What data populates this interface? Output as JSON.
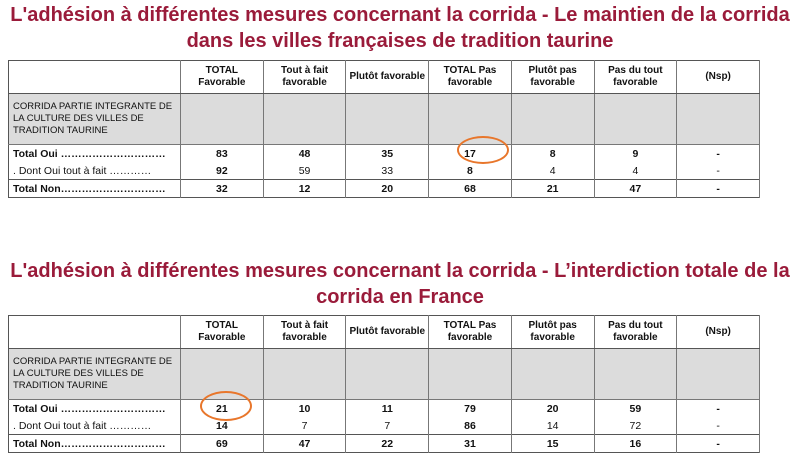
{
  "table1": {
    "title_line1": "L'adhésion à différentes mesures concernant la corrida - Le maintien de la corrida",
    "title_line2": "dans les villes françaises de tradition taurine",
    "headers": [
      "",
      "TOTAL Favorable",
      "Tout à fait favorable",
      "Plutôt favorable",
      "TOTAL Pas favorable",
      "Plutôt pas favorable",
      "Pas du tout favorable",
      "(Nsp)"
    ],
    "category": "CORRIDA PARTIE INTEGRANTE DE LA CULTURE DES VILLES DE TRADITION TAURINE",
    "rows": [
      {
        "label": "Total Oui …………………………",
        "values": [
          "83",
          "48",
          "35",
          "17",
          "8",
          "9",
          "-"
        ],
        "bold": true
      },
      {
        "label": ". Dont Oui tout à fait …………",
        "values": [
          "92",
          "59",
          "33",
          "8",
          "4",
          "4",
          "-"
        ],
        "bold": false
      },
      {
        "label": "Total Non…………………………",
        "values": [
          "32",
          "12",
          "20",
          "68",
          "21",
          "47",
          "-"
        ],
        "bold": true
      }
    ]
  },
  "table2": {
    "title_line1": "L'adhésion à différentes mesures concernant la corrida - L’interdiction totale de la",
    "title_line2": "corrida en France",
    "headers": [
      "",
      "TOTAL Favorable",
      "Tout à fait favorable",
      "Plutôt favorable",
      "TOTAL Pas favorable",
      "Plutôt pas favorable",
      "Pas du tout favorable",
      "(Nsp)"
    ],
    "category": "CORRIDA PARTIE INTEGRANTE DE LA CULTURE DES VILLES DE TRADITION TAURINE",
    "rows": [
      {
        "label": "Total Oui …………………………",
        "values": [
          "21",
          "10",
          "11",
          "79",
          "20",
          "59",
          "-"
        ],
        "bold": true
      },
      {
        "label": ". Dont Oui tout à fait …………",
        "values": [
          "14",
          "7",
          "7",
          "86",
          "14",
          "72",
          "-"
        ],
        "bold": false
      },
      {
        "label": "Total Non…………………………",
        "values": [
          "69",
          "47",
          "22",
          "31",
          "15",
          "16",
          "-"
        ],
        "bold": true
      }
    ]
  },
  "colors": {
    "title": "#9a1b3a",
    "highlight_circle": "#e8762b",
    "grey_band": "#dcdcdc"
  }
}
